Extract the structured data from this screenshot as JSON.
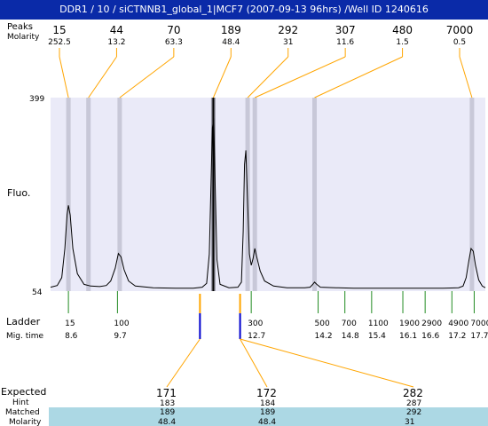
{
  "title": "DDR1 / 10 / siCTNNB1_global_1|MCF7 (2007-09-13 96hrs) /Well ID 1240616",
  "labels": {
    "peaks_row": "Peaks",
    "molarity_row": "Molarity",
    "fluo": "Fluo.",
    "ladder": "Ladder",
    "mig_time": "Mig. time",
    "expected": "Expected",
    "hint": "Hint",
    "matched": "Matched",
    "molarity_bottom": "Molarity"
  },
  "chart_data": {
    "type": "line",
    "y_ticks": [
      54,
      399
    ],
    "ylim": [
      54,
      399
    ],
    "x_range_mig_time": [
      8.2,
      17.95
    ],
    "peaks": [
      {
        "size": "15",
        "molarity": "252.5",
        "mig_time": 8.6
      },
      {
        "size": "44",
        "molarity": "13.2",
        "mig_time": 9.05
      },
      {
        "size": "70",
        "molarity": "63.3",
        "mig_time": 9.75
      },
      {
        "size": "189",
        "molarity": "48.4",
        "mig_time": 11.85
      },
      {
        "size": "292",
        "molarity": "31",
        "mig_time": 12.62
      },
      {
        "size": "307",
        "molarity": "11.6",
        "mig_time": 12.78
      },
      {
        "size": "480",
        "molarity": "1.5",
        "mig_time": 14.12
      },
      {
        "size": "7000",
        "molarity": "0.5",
        "mig_time": 17.65
      }
    ],
    "ladder": [
      {
        "size": "15",
        "mig_time": "8.6"
      },
      {
        "size": "100",
        "mig_time": "9.7"
      },
      {
        "size": "300",
        "mig_time": "12.7"
      },
      {
        "size": "500",
        "mig_time": "14.2"
      },
      {
        "size": "700",
        "mig_time": "14.8"
      },
      {
        "size": "1100",
        "mig_time": "15.4"
      },
      {
        "size": "1900",
        "mig_time": "16.1"
      },
      {
        "size": "2900",
        "mig_time": "16.6"
      },
      {
        "size": "4900",
        "mig_time": "17.2"
      },
      {
        "size": "7000",
        "mig_time": "17.7"
      }
    ],
    "trace": [
      [
        8.2,
        61
      ],
      [
        8.35,
        64
      ],
      [
        8.45,
        78
      ],
      [
        8.52,
        130
      ],
      [
        8.57,
        190
      ],
      [
        8.6,
        207
      ],
      [
        8.64,
        190
      ],
      [
        8.7,
        130
      ],
      [
        8.8,
        85
      ],
      [
        8.95,
        66
      ],
      [
        9.1,
        63
      ],
      [
        9.3,
        62
      ],
      [
        9.45,
        64
      ],
      [
        9.55,
        72
      ],
      [
        9.65,
        95
      ],
      [
        9.72,
        121
      ],
      [
        9.78,
        115
      ],
      [
        9.85,
        92
      ],
      [
        9.95,
        72
      ],
      [
        10.1,
        63
      ],
      [
        10.5,
        60
      ],
      [
        11.0,
        59
      ],
      [
        11.4,
        59
      ],
      [
        11.6,
        61
      ],
      [
        11.7,
        68
      ],
      [
        11.76,
        120
      ],
      [
        11.8,
        250
      ],
      [
        11.83,
        345
      ],
      [
        11.86,
        362
      ],
      [
        11.89,
        250
      ],
      [
        11.93,
        110
      ],
      [
        12.0,
        66
      ],
      [
        12.2,
        60
      ],
      [
        12.4,
        61
      ],
      [
        12.48,
        70
      ],
      [
        12.52,
        160
      ],
      [
        12.55,
        280
      ],
      [
        12.58,
        305
      ],
      [
        12.62,
        210
      ],
      [
        12.66,
        120
      ],
      [
        12.7,
        100
      ],
      [
        12.74,
        112
      ],
      [
        12.78,
        130
      ],
      [
        12.82,
        116
      ],
      [
        12.9,
        90
      ],
      [
        13.0,
        72
      ],
      [
        13.2,
        63
      ],
      [
        13.5,
        60
      ],
      [
        13.9,
        60
      ],
      [
        14.02,
        61
      ],
      [
        14.08,
        66
      ],
      [
        14.12,
        70
      ],
      [
        14.17,
        66
      ],
      [
        14.25,
        61
      ],
      [
        14.6,
        60
      ],
      [
        15.0,
        59
      ],
      [
        15.5,
        59
      ],
      [
        16.0,
        59
      ],
      [
        16.5,
        59
      ],
      [
        17.0,
        59
      ],
      [
        17.35,
        60
      ],
      [
        17.45,
        63
      ],
      [
        17.52,
        78
      ],
      [
        17.58,
        108
      ],
      [
        17.63,
        130
      ],
      [
        17.68,
        125
      ],
      [
        17.73,
        100
      ],
      [
        17.8,
        74
      ],
      [
        17.88,
        63
      ],
      [
        17.95,
        60
      ]
    ],
    "assignments": [
      {
        "expected": "171",
        "hint": "183",
        "matched": "189",
        "molarity": "48.4",
        "expected_color": "#e02020",
        "marker_mig_time": 11.55
      },
      {
        "expected": "172",
        "hint": "184",
        "matched": "189",
        "molarity": "48.4",
        "expected_color": "#000000",
        "marker_mig_time": 12.45
      },
      {
        "expected": "282",
        "hint": "287",
        "matched": "292",
        "molarity": "31",
        "expected_color": "#e02020",
        "marker_mig_time": 12.45
      }
    ]
  }
}
